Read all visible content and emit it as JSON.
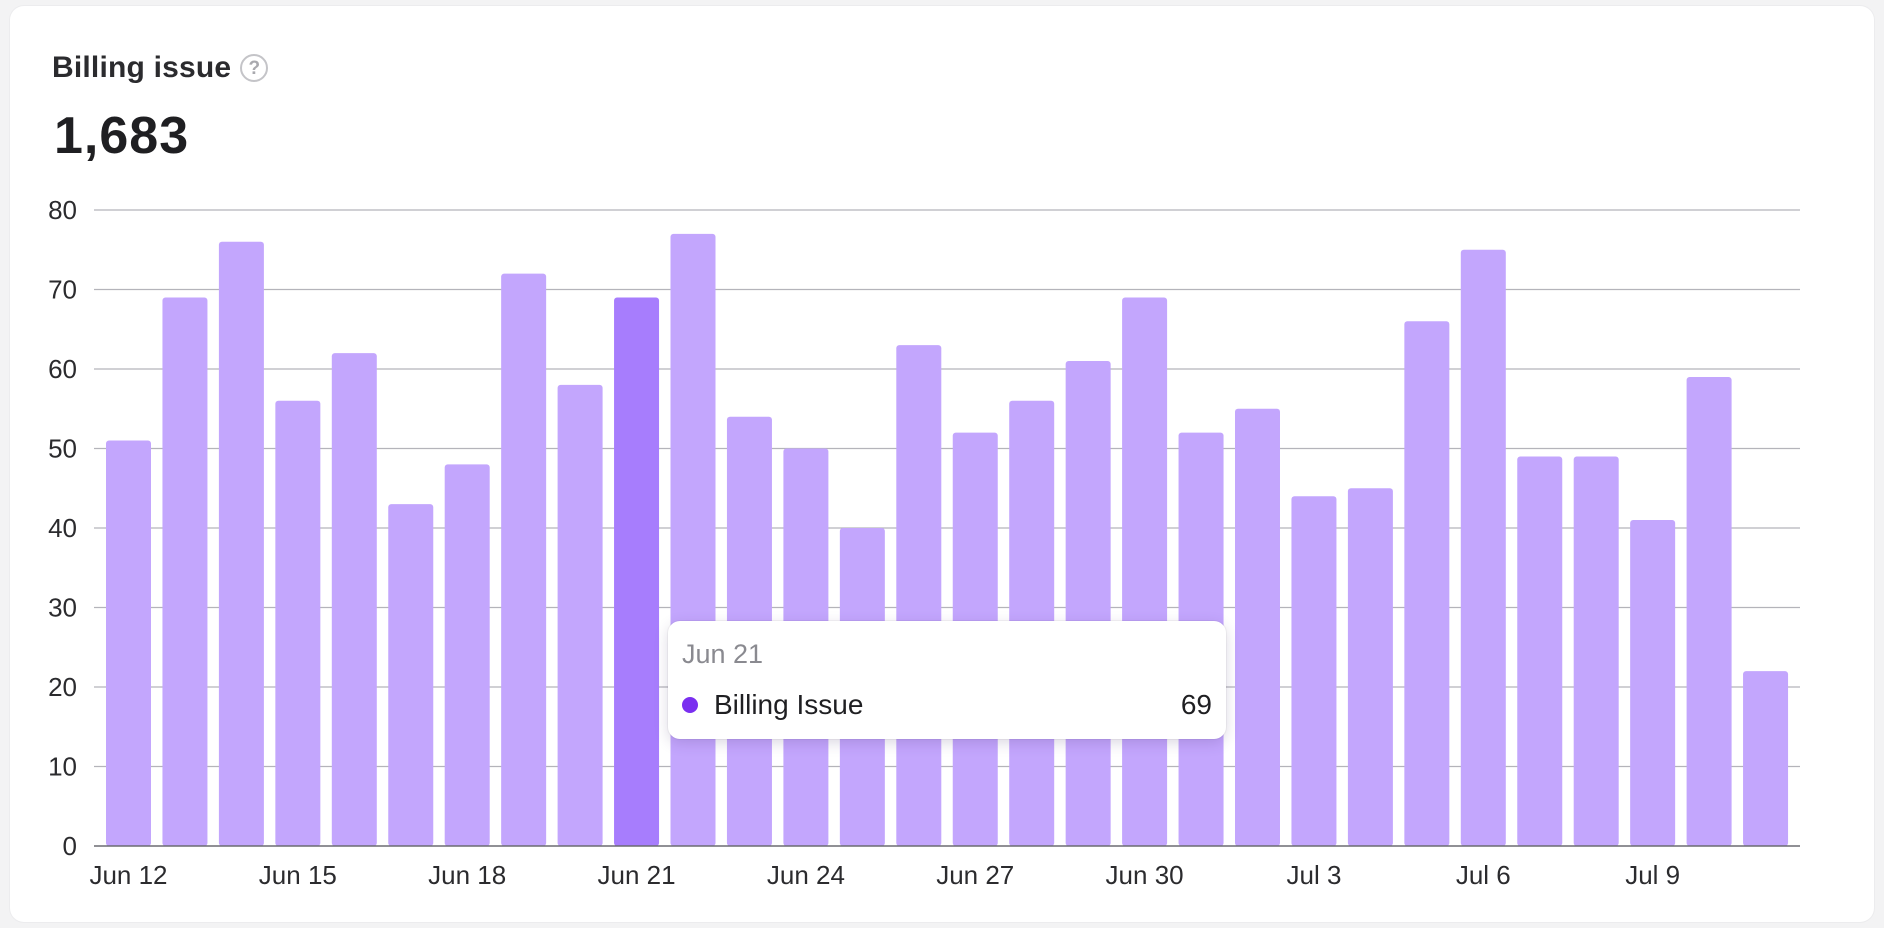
{
  "card": {
    "title": "Billing issue",
    "help_glyph": "?",
    "total": "1,683"
  },
  "colors": {
    "bar": "#c3a6fd",
    "bar_active": "#a77dfd",
    "tooltip_dot": "#7a2ff0"
  },
  "tooltip": {
    "date": "Jun 21",
    "series": "Billing Issue",
    "value": "69"
  },
  "chart_data": {
    "type": "bar",
    "title": "Billing issue",
    "xlabel": "",
    "ylabel": "",
    "ylim": [
      0,
      80
    ],
    "y_ticks": [
      0,
      10,
      20,
      30,
      40,
      50,
      60,
      70,
      80
    ],
    "grid": true,
    "categories": [
      "Jun 12",
      "Jun 13",
      "Jun 14",
      "Jun 15",
      "Jun 16",
      "Jun 17",
      "Jun 18",
      "Jun 19",
      "Jun 20",
      "Jun 21",
      "Jun 22",
      "Jun 23",
      "Jun 24",
      "Jun 25",
      "Jun 26",
      "Jun 27",
      "Jun 28",
      "Jun 29",
      "Jun 30",
      "Jul 1",
      "Jul 2",
      "Jul 3",
      "Jul 4",
      "Jul 5",
      "Jul 6",
      "Jul 7",
      "Jul 8",
      "Jul 9",
      "Jul 10",
      "Jul 11"
    ],
    "x_tick_labels": [
      "Jun 12",
      "Jun 15",
      "Jun 18",
      "Jun 21",
      "Jun 24",
      "Jun 27",
      "Jun 30",
      "Jul 3",
      "Jul 6",
      "Jul 9"
    ],
    "series": [
      {
        "name": "Billing Issue",
        "values": [
          51,
          69,
          76,
          56,
          62,
          43,
          48,
          72,
          58,
          69,
          77,
          54,
          50,
          40,
          63,
          52,
          56,
          61,
          69,
          52,
          55,
          44,
          45,
          66,
          75,
          49,
          49,
          41,
          59,
          22
        ]
      }
    ],
    "highlighted_category": "Jun 21"
  }
}
